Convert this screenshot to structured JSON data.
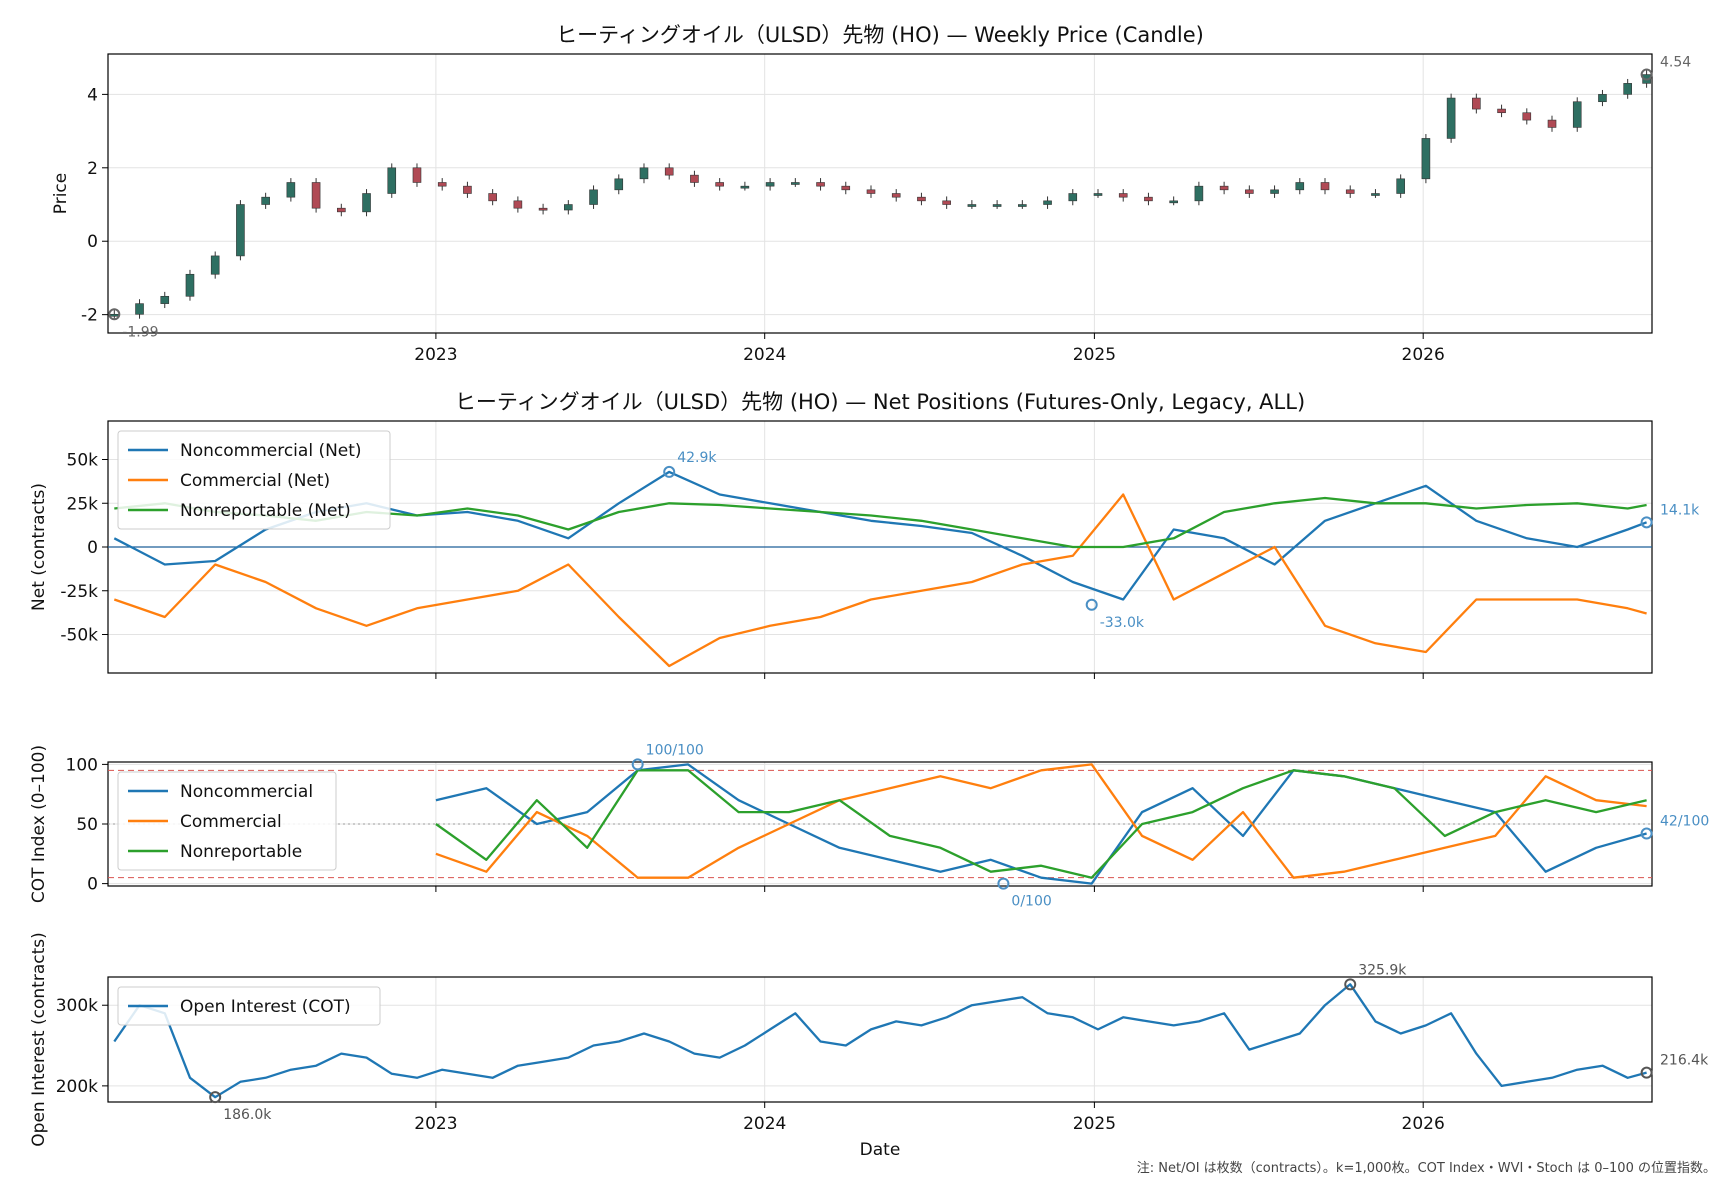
{
  "chart_data": [
    {
      "type": "candlestick",
      "title": "ヒーティングオイル（ULSD）先物 (HO) — Weekly Price (Candle)",
      "xlabel": "",
      "ylabel": "Price",
      "ylim": [
        -2.5,
        5.1
      ],
      "yticks": [
        -2,
        0,
        2,
        4
      ],
      "ytick_labels": [
        "-2",
        "0",
        "2",
        "4"
      ],
      "xtick_labels": [
        "2023",
        "2024",
        "2025",
        "2026"
      ],
      "xlim": [
        "2022-01-02",
        "2026-09-12"
      ],
      "grid": true,
      "up_color": "#2e6f62",
      "down_color": "#b04a55",
      "x": [
        "2022-01-09",
        "2022-02-06",
        "2022-03-06",
        "2022-04-03",
        "2022-05-01",
        "2022-05-29",
        "2022-06-26",
        "2022-07-24",
        "2022-08-21",
        "2022-09-18",
        "2022-10-16",
        "2022-11-13",
        "2022-12-11",
        "2023-01-08",
        "2023-02-05",
        "2023-03-05",
        "2023-04-02",
        "2023-04-30",
        "2023-05-28",
        "2023-06-25",
        "2023-07-23",
        "2023-08-20",
        "2023-09-17",
        "2023-10-15",
        "2023-11-12",
        "2023-12-10",
        "2024-01-07",
        "2024-02-04",
        "2024-03-03",
        "2024-03-31",
        "2024-04-28",
        "2024-05-26",
        "2024-06-23",
        "2024-07-21",
        "2024-08-18",
        "2024-09-15",
        "2024-10-13",
        "2024-11-10",
        "2024-12-08",
        "2025-01-05",
        "2025-02-02",
        "2025-03-02",
        "2025-03-30",
        "2025-04-27",
        "2025-05-25",
        "2025-06-22",
        "2025-07-20",
        "2025-08-17",
        "2025-09-14",
        "2025-10-12",
        "2025-11-09",
        "2025-12-07",
        "2026-01-04",
        "2026-02-01",
        "2026-03-01",
        "2026-03-29",
        "2026-04-26",
        "2026-05-24",
        "2026-06-21",
        "2026-07-19",
        "2026-08-16",
        "2026-09-06"
      ],
      "close": [
        -1.99,
        -1.7,
        -1.5,
        -0.9,
        -0.4,
        1.0,
        1.2,
        1.6,
        0.9,
        0.8,
        1.3,
        2.0,
        1.6,
        1.5,
        1.3,
        1.1,
        0.9,
        0.85,
        1.0,
        1.4,
        1.7,
        2.0,
        1.8,
        1.6,
        1.5,
        1.5,
        1.6,
        1.6,
        1.5,
        1.4,
        1.3,
        1.2,
        1.1,
        1.0,
        1.0,
        1.0,
        1.0,
        1.1,
        1.3,
        1.3,
        1.2,
        1.1,
        1.1,
        1.5,
        1.4,
        1.3,
        1.4,
        1.6,
        1.4,
        1.3,
        1.3,
        1.7,
        2.8,
        3.9,
        3.6,
        3.5,
        3.3,
        3.1,
        3.8,
        4.0,
        4.3,
        4.54
      ],
      "annotations": [
        {
          "label": "4.54",
          "x": "2026-09-06",
          "y": 4.54
        },
        {
          "label": "-1.99",
          "x": "2022-01-09",
          "y": -1.99
        }
      ]
    },
    {
      "type": "line",
      "title": "ヒーティングオイル（ULSD）先物 (HO) — Net Positions (Futures-Only, Legacy, ALL)",
      "xlabel": "",
      "ylabel": "Net (contracts)",
      "ylim": [
        -72000,
        72000
      ],
      "yticks": [
        -50000,
        -25000,
        0,
        25000,
        50000
      ],
      "ytick_labels": [
        "-50k",
        "-25k",
        "0",
        "25k",
        "50k"
      ],
      "grid": true,
      "legend": "top-left",
      "x": [
        "2022-01-09",
        "2022-03-06",
        "2022-05-01",
        "2022-06-26",
        "2022-08-21",
        "2022-10-16",
        "2022-12-11",
        "2023-02-05",
        "2023-04-02",
        "2023-05-28",
        "2023-07-23",
        "2023-09-17",
        "2023-11-12",
        "2024-01-07",
        "2024-03-03",
        "2024-04-28",
        "2024-06-23",
        "2024-08-18",
        "2024-10-13",
        "2024-12-08",
        "2025-02-02",
        "2025-03-30",
        "2025-05-25",
        "2025-07-20",
        "2025-09-14",
        "2025-11-09",
        "2026-01-04",
        "2026-03-01",
        "2026-04-26",
        "2026-06-21",
        "2026-08-16",
        "2026-09-06"
      ],
      "series": [
        {
          "name": "Noncommercial (Net)",
          "color": "#1f77b4",
          "values": [
            5000,
            -10000,
            -8000,
            10000,
            20000,
            25000,
            18000,
            20000,
            15000,
            5000,
            25000,
            42900,
            30000,
            25000,
            20000,
            15000,
            12000,
            8000,
            -5000,
            -20000,
            -30000,
            10000,
            5000,
            -10000,
            15000,
            25000,
            35000,
            15000,
            5000,
            0,
            10000,
            14100
          ]
        },
        {
          "name": "Commercial (Net)",
          "color": "#ff7f0e",
          "values": [
            -30000,
            -40000,
            -10000,
            -20000,
            -35000,
            -45000,
            -35000,
            -30000,
            -25000,
            -10000,
            -40000,
            -68000,
            -52000,
            -45000,
            -40000,
            -30000,
            -25000,
            -20000,
            -10000,
            -5000,
            30000,
            -30000,
            -15000,
            0,
            -45000,
            -55000,
            -60000,
            -30000,
            -30000,
            -30000,
            -35000,
            -38000
          ]
        },
        {
          "name": "Nonreportable (Net)",
          "color": "#2ca02c",
          "values": [
            22000,
            25000,
            20000,
            18000,
            15000,
            20000,
            18000,
            22000,
            18000,
            10000,
            20000,
            25000,
            24000,
            22000,
            20000,
            18000,
            15000,
            10000,
            5000,
            0,
            0,
            5000,
            20000,
            25000,
            28000,
            25000,
            25000,
            22000,
            24000,
            25000,
            22000,
            24000
          ]
        }
      ],
      "annotations": [
        {
          "label": "42.9k",
          "x": "2023-09-17",
          "y": 42900
        },
        {
          "label": "-33.0k",
          "x": "2024-12-29",
          "y": -33000
        },
        {
          "label": "14.1k",
          "x": "2026-09-06",
          "y": 14100
        }
      ]
    },
    {
      "type": "line",
      "title": "",
      "xlabel": "",
      "ylabel": "COT Index (0–100)",
      "ylim": [
        -2,
        102
      ],
      "yticks": [
        0,
        50,
        100
      ],
      "ytick_labels": [
        "0",
        "50",
        "100"
      ],
      "reference_lines": [
        5,
        50,
        95
      ],
      "grid": true,
      "legend": "top-left",
      "x": [
        "2023-01-01",
        "2023-02-26",
        "2023-04-23",
        "2023-06-18",
        "2023-08-13",
        "2023-10-08",
        "2023-12-03",
        "2024-01-28",
        "2024-03-24",
        "2024-05-19",
        "2024-07-14",
        "2024-09-08",
        "2024-11-03",
        "2024-12-29",
        "2025-02-23",
        "2025-04-20",
        "2025-06-15",
        "2025-08-10",
        "2025-10-05",
        "2025-11-30",
        "2026-01-25",
        "2026-03-22",
        "2026-05-17",
        "2026-07-12",
        "2026-09-06"
      ],
      "series": [
        {
          "name": "Noncommercial",
          "color": "#1f77b4",
          "values": [
            70,
            80,
            50,
            60,
            95,
            100,
            70,
            50,
            30,
            20,
            10,
            20,
            5,
            0,
            60,
            80,
            40,
            95,
            90,
            80,
            70,
            60,
            10,
            30,
            42
          ]
        },
        {
          "name": "Commercial",
          "color": "#ff7f0e",
          "values": [
            25,
            10,
            60,
            40,
            5,
            5,
            30,
            50,
            70,
            80,
            90,
            80,
            95,
            100,
            40,
            20,
            60,
            5,
            10,
            20,
            30,
            40,
            90,
            70,
            65
          ]
        },
        {
          "name": "Nonreportable",
          "color": "#2ca02c",
          "values": [
            50,
            20,
            70,
            30,
            95,
            95,
            60,
            60,
            70,
            40,
            30,
            10,
            15,
            5,
            50,
            60,
            80,
            95,
            90,
            80,
            40,
            60,
            70,
            60,
            70
          ]
        }
      ],
      "annotations": [
        {
          "label": "100/100",
          "x": "2023-08-13",
          "y": 100
        },
        {
          "label": "0/100",
          "x": "2024-09-22",
          "y": 0
        },
        {
          "label": "42/100",
          "x": "2026-09-06",
          "y": 42
        }
      ]
    },
    {
      "type": "line",
      "title": "",
      "xlabel": "Date",
      "ylabel": "Open Interest (contracts)",
      "ylim": [
        180000,
        335000
      ],
      "yticks": [
        200000,
        300000
      ],
      "ytick_labels": [
        "200k",
        "300k"
      ],
      "xtick_labels": [
        "2023",
        "2024",
        "2025",
        "2026"
      ],
      "grid": true,
      "legend": "top-left",
      "x": [
        "2022-01-09",
        "2022-02-06",
        "2022-03-06",
        "2022-04-03",
        "2022-05-01",
        "2022-05-29",
        "2022-06-26",
        "2022-07-24",
        "2022-08-21",
        "2022-09-18",
        "2022-10-16",
        "2022-11-13",
        "2022-12-11",
        "2023-01-08",
        "2023-02-05",
        "2023-03-05",
        "2023-04-02",
        "2023-04-30",
        "2023-05-28",
        "2023-06-25",
        "2023-07-23",
        "2023-08-20",
        "2023-09-17",
        "2023-10-15",
        "2023-11-12",
        "2023-12-10",
        "2024-01-07",
        "2024-02-04",
        "2024-03-03",
        "2024-03-31",
        "2024-04-28",
        "2024-05-26",
        "2024-06-23",
        "2024-07-21",
        "2024-08-18",
        "2024-09-15",
        "2024-10-13",
        "2024-11-10",
        "2024-12-08",
        "2025-01-05",
        "2025-02-02",
        "2025-03-02",
        "2025-03-30",
        "2025-04-27",
        "2025-05-25",
        "2025-06-22",
        "2025-07-20",
        "2025-08-17",
        "2025-09-14",
        "2025-10-12",
        "2025-11-09",
        "2025-12-07",
        "2026-01-04",
        "2026-02-01",
        "2026-03-01",
        "2026-03-29",
        "2026-04-26",
        "2026-05-24",
        "2026-06-21",
        "2026-07-19",
        "2026-08-16",
        "2026-09-06"
      ],
      "series": [
        {
          "name": "Open Interest (COT)",
          "color": "#1f77b4",
          "values": [
            255000,
            300000,
            290000,
            210000,
            186000,
            205000,
            210000,
            220000,
            225000,
            240000,
            235000,
            215000,
            210000,
            220000,
            215000,
            210000,
            225000,
            230000,
            235000,
            250000,
            255000,
            265000,
            255000,
            240000,
            235000,
            250000,
            270000,
            290000,
            255000,
            250000,
            270000,
            280000,
            275000,
            285000,
            300000,
            305000,
            310000,
            290000,
            285000,
            270000,
            285000,
            280000,
            275000,
            280000,
            290000,
            245000,
            255000,
            265000,
            300000,
            325900,
            280000,
            265000,
            275000,
            290000,
            240000,
            200000,
            205000,
            210000,
            220000,
            225000,
            210000,
            216400
          ]
        }
      ],
      "annotations": [
        {
          "label": "325.9k",
          "x": "2025-10-12",
          "y": 325900
        },
        {
          "label": "186.0k",
          "x": "2022-05-01",
          "y": 186000
        },
        {
          "label": "216.4k",
          "x": "2026-09-06",
          "y": 216400
        }
      ]
    }
  ],
  "footer_note": "注: Net/OI は枚数（contracts）。k=1,000枚。COT Index・WVI・Stoch は 0–100 の位置指数。"
}
